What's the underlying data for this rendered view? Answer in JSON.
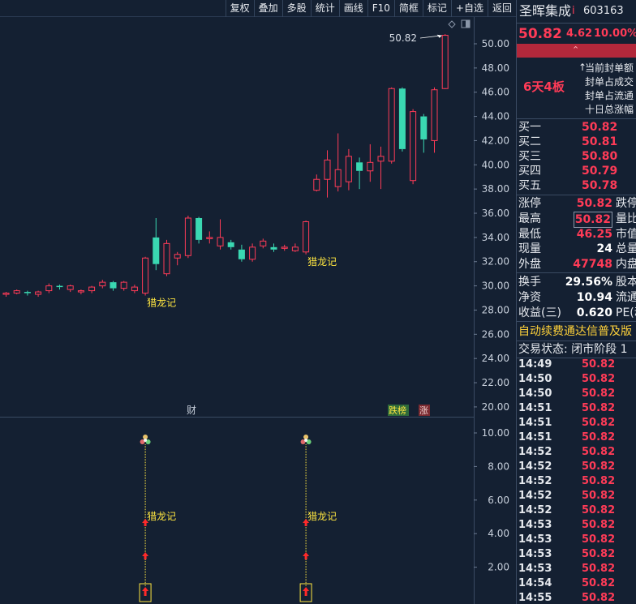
{
  "toolbar": {
    "buttons": [
      "复权",
      "叠加",
      "多股",
      "统计",
      "画线",
      "F10",
      "简框",
      "标记",
      "+自选",
      "返回"
    ]
  },
  "chart": {
    "price_axis": [
      "50.00",
      "48.00",
      "46.00",
      "44.00",
      "42.00",
      "40.00",
      "38.00",
      "36.00",
      "34.00",
      "32.00",
      "30.00",
      "28.00",
      "26.00",
      "24.00",
      "22.00",
      "20.00"
    ],
    "indicator_axis": [
      "10.00",
      "8.00",
      "6.00",
      "4.00",
      "2.00"
    ],
    "high_marker": "50.82",
    "annotation_label": "猎龙记",
    "bottom_tags": {
      "cai": "财",
      "dieban": "跌榜",
      "zhang": "涨"
    },
    "colors": {
      "up": "#ff3b57",
      "down": "#3ad8b2",
      "flat": "#ffffff",
      "label": "#ffe640",
      "background": "#142032"
    }
  },
  "chart_data": {
    "type": "candlestick",
    "columns": [
      "open",
      "close",
      "high",
      "low"
    ],
    "candles": [
      [
        29.3,
        29.4,
        29.5,
        29.1
      ],
      [
        29.4,
        29.6,
        29.7,
        29.3
      ],
      [
        29.5,
        29.4,
        29.6,
        29.2
      ],
      [
        29.3,
        29.5,
        29.6,
        29.1
      ],
      [
        29.6,
        30.0,
        30.2,
        29.4
      ],
      [
        30.0,
        29.9,
        30.1,
        29.7
      ],
      [
        29.7,
        30.0,
        30.1,
        29.5
      ],
      [
        29.5,
        29.6,
        29.7,
        29.3
      ],
      [
        29.6,
        29.9,
        30.0,
        29.4
      ],
      [
        30.0,
        30.3,
        30.5,
        29.8
      ],
      [
        30.3,
        29.8,
        30.4,
        29.6
      ],
      [
        29.8,
        30.3,
        30.4,
        29.6
      ],
      [
        29.6,
        29.9,
        30.1,
        29.4
      ],
      [
        29.4,
        32.3,
        32.4,
        29.2
      ],
      [
        34.0,
        31.8,
        35.6,
        31.3
      ],
      [
        31.0,
        33.5,
        33.8,
        30.8
      ],
      [
        32.3,
        32.6,
        32.8,
        31.7
      ],
      [
        32.5,
        35.6,
        35.8,
        32.3
      ],
      [
        35.6,
        33.8,
        35.7,
        33.5
      ],
      [
        33.9,
        34.0,
        34.5,
        33.5
      ],
      [
        33.3,
        34.0,
        35.5,
        33.0
      ],
      [
        33.6,
        33.2,
        33.8,
        33.0
      ],
      [
        33.0,
        32.2,
        33.4,
        32.0
      ],
      [
        32.2,
        33.2,
        33.5,
        32.0
      ],
      [
        33.3,
        33.7,
        33.9,
        33.1
      ],
      [
        33.2,
        33.0,
        33.5,
        32.8
      ],
      [
        33.1,
        33.2,
        33.4,
        32.9
      ],
      [
        32.9,
        33.2,
        33.5,
        32.8
      ],
      [
        32.8,
        35.3,
        35.4,
        32.6
      ],
      [
        37.9,
        38.8,
        39.2,
        37.8
      ],
      [
        38.8,
        40.4,
        41.2,
        37.3
      ],
      [
        38.2,
        39.6,
        42.6,
        37.8
      ],
      [
        38.6,
        40.7,
        41.3,
        37.9
      ],
      [
        40.2,
        39.5,
        40.6,
        38.0
      ],
      [
        39.5,
        40.2,
        41.7,
        38.6
      ],
      [
        40.3,
        40.7,
        41.5,
        38.0
      ],
      [
        40.3,
        46.3,
        46.4,
        40.1
      ],
      [
        46.3,
        41.3,
        46.4,
        41.1
      ],
      [
        38.7,
        44.4,
        44.6,
        38.4
      ],
      [
        44.0,
        42.1,
        44.2,
        41.0
      ],
      [
        42.0,
        46.2,
        46.4,
        41.0
      ],
      [
        46.3,
        50.7,
        50.8,
        46.25
      ]
    ],
    "indicator_signals_at": [
      13,
      28
    ],
    "price_range": [
      20.0,
      50.82
    ],
    "indicator_range": [
      0,
      10.0
    ]
  },
  "panel": {
    "stock_name": "圣晖集成",
    "name_flag": "i",
    "stock_code": "603163",
    "price": "50.82",
    "change": "4.62",
    "change_pct": "10.00%",
    "board_text": "6天4板",
    "board_info": [
      "当前封单额",
      "封单占成交",
      "封单占流通",
      "十日总涨幅"
    ],
    "order_book": [
      {
        "label": "买一",
        "price": "50.82"
      },
      {
        "label": "买二",
        "price": "50.81"
      },
      {
        "label": "买三",
        "price": "50.80"
      },
      {
        "label": "买四",
        "price": "50.79"
      },
      {
        "label": "买五",
        "price": "50.78"
      }
    ],
    "quote_rows": [
      {
        "label": "涨停",
        "value": "50.82",
        "extra": "跌停",
        "color": "red"
      },
      {
        "label": "最高",
        "value": "50.82",
        "extra": "量比",
        "color": "red",
        "boxed": true
      },
      {
        "label": "最低",
        "value": "46.25",
        "extra": "市值",
        "color": "red"
      },
      {
        "label": "现量",
        "value": "24",
        "extra": "总量",
        "color": "white"
      },
      {
        "label": "外盘",
        "value": "47748",
        "extra": "内盘",
        "color": "red"
      }
    ],
    "finance_rows": [
      {
        "label": "换手",
        "value": "29.56%",
        "extra": "股本"
      },
      {
        "label": "净资",
        "value": "10.94",
        "extra": "流通"
      },
      {
        "label": "收益(三)",
        "value": "0.620",
        "extra": "PE(动"
      }
    ],
    "promo": "自动续费通达信普及版",
    "trade_status": "交易状态: 闭市阶段 1",
    "ticks": [
      {
        "time": "14:49",
        "price": "50.82"
      },
      {
        "time": "14:50",
        "price": "50.82"
      },
      {
        "time": "14:50",
        "price": "50.82"
      },
      {
        "time": "14:51",
        "price": "50.82"
      },
      {
        "time": "14:51",
        "price": "50.82"
      },
      {
        "time": "14:51",
        "price": "50.82"
      },
      {
        "time": "14:52",
        "price": "50.82"
      },
      {
        "time": "14:52",
        "price": "50.82"
      },
      {
        "time": "14:52",
        "price": "50.82"
      },
      {
        "time": "14:52",
        "price": "50.82"
      },
      {
        "time": "14:52",
        "price": "50.82"
      },
      {
        "time": "14:53",
        "price": "50.82"
      },
      {
        "time": "14:53",
        "price": "50.82"
      },
      {
        "time": "14:53",
        "price": "50.82"
      },
      {
        "time": "14:53",
        "price": "50.82"
      },
      {
        "time": "14:54",
        "price": "50.82"
      },
      {
        "time": "14:55",
        "price": "50.82"
      }
    ]
  }
}
